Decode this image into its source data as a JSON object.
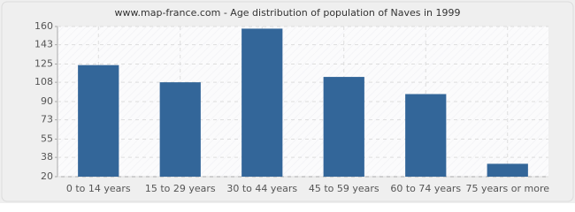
{
  "chart_data": {
    "type": "bar",
    "title": "www.map-france.com - Age distribution of population of Naves in 1999",
    "categories": [
      "0 to 14 years",
      "15 to 29 years",
      "30 to 44 years",
      "45 to 59 years",
      "60 to 74 years",
      "75 years or more"
    ],
    "values": [
      124,
      108,
      158,
      113,
      97,
      32
    ],
    "color": "#336699",
    "ylim": [
      20,
      160
    ],
    "yticks": [
      20,
      38,
      55,
      73,
      90,
      108,
      125,
      143,
      160
    ],
    "grid": true
  }
}
